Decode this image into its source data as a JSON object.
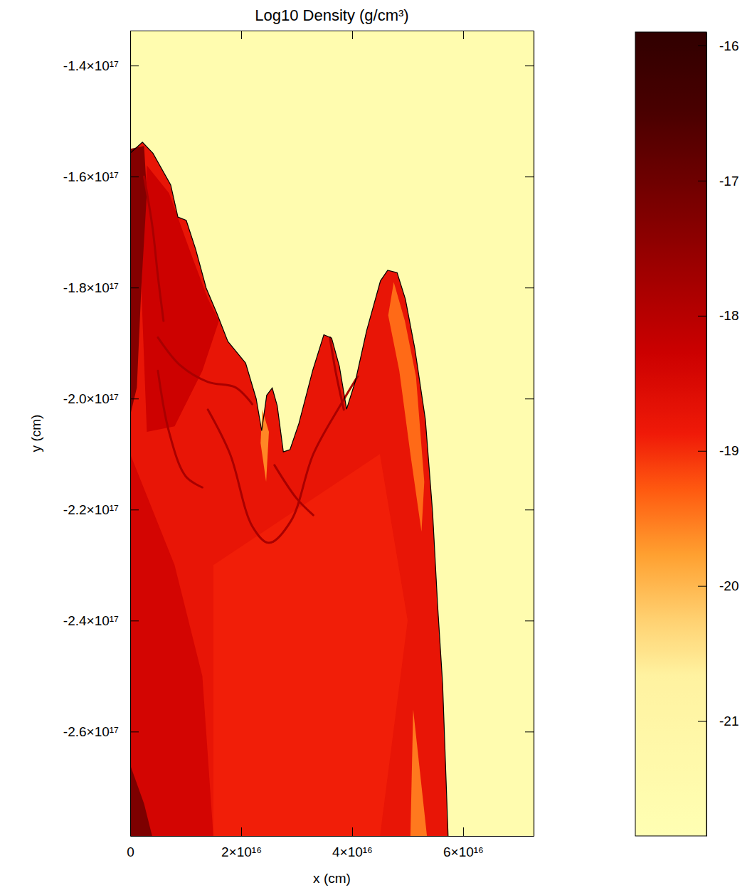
{
  "chart_data": {
    "type": "contour",
    "title": "Log10 Density (g/cm³)",
    "x_label": "x (cm)",
    "y_label": "y (cm)",
    "xlim": [
      0,
      7.27e+16
    ],
    "ylim": [
      -2.788e+17,
      -1.337e+17
    ],
    "xticks": [
      0,
      {
        "value": 2e+16,
        "label": "2×10¹⁶"
      },
      {
        "value": 4e+16,
        "label": "4×10¹⁶"
      },
      {
        "value": 6e+16,
        "label": "6×10¹⁶"
      }
    ],
    "yticks": [
      {
        "value": -1.4e+17,
        "label": "-1.4×10¹⁷"
      },
      {
        "value": -1.6e+17,
        "label": "-1.6×10¹⁷"
      },
      {
        "value": -1.8e+17,
        "label": "-1.8×10¹⁷"
      },
      {
        "value": -2e+17,
        "label": "-2.0×10¹⁷"
      },
      {
        "value": -2.2e+17,
        "label": "-2.2×10¹⁷"
      },
      {
        "value": -2.4e+17,
        "label": "-2.4×10¹⁷"
      },
      {
        "value": -2.6e+17,
        "label": "-2.6×10¹⁷"
      }
    ],
    "background": -21.6,
    "colorbar": {
      "range": [
        -21.85,
        -15.9
      ],
      "ticks": [
        -21,
        -20,
        -19,
        -18,
        -17,
        -16
      ]
    },
    "regions": [
      {
        "value": -18.75,
        "points": [
          [
            0,
            -1.558e+17
          ],
          [
            2200000000000000.0,
            -1.538e+17
          ],
          [
            4100000000000000.0,
            -1.558e+17
          ],
          [
            7300000000000000.0,
            -1.615e+17
          ],
          [
            8600000000000000.0,
            -1.673e+17
          ],
          [
            1.01e+16,
            -1.679e+17
          ],
          [
            1.18e+16,
            -1.731e+17
          ],
          [
            1.37e+16,
            -1.801e+17
          ],
          [
            1.56e+16,
            -1.846e+17
          ],
          [
            1.76e+16,
            -1.897e+17
          ],
          [
            2.08e+16,
            -1.936e+17
          ],
          [
            2.27e+16,
            -2e+17
          ],
          [
            2.37e+16,
            -2.058e+17
          ],
          [
            2.46e+16,
            -1.994e+17
          ],
          [
            2.56e+16,
            -1.981e+17
          ],
          [
            2.65e+16,
            -2.013e+17
          ],
          [
            2.76e+16,
            -2.096e+17
          ],
          [
            2.88e+16,
            -2.092e+17
          ],
          [
            3.04e+16,
            -2.045e+17
          ],
          [
            3.29e+16,
            -1.949e+17
          ],
          [
            3.49e+16,
            -1.885e+17
          ],
          [
            3.63e+16,
            -1.891e+17
          ],
          [
            3.77e+16,
            -1.942e+17
          ],
          [
            3.9e+16,
            -2.019e+17
          ],
          [
            4.06e+16,
            -1.968e+17
          ],
          [
            4.26e+16,
            -1.878e+17
          ],
          [
            4.51e+16,
            -1.788e+17
          ],
          [
            4.64e+16,
            -1.769e+17
          ],
          [
            4.81e+16,
            -1.773e+17
          ],
          [
            4.96e+16,
            -1.821e+17
          ],
          [
            5.13e+16,
            -1.91e+17
          ],
          [
            5.32e+16,
            -2.038e+17
          ],
          [
            5.45e+16,
            -2.205e+17
          ],
          [
            5.54e+16,
            -2.372e+17
          ],
          [
            5.63e+16,
            -2.513e+17
          ],
          [
            5.73e+16,
            -2.79e+17
          ],
          [
            0,
            -2.79e+17
          ]
        ]
      },
      {
        "value": -18.9,
        "points": [
          [
            1.5e+16,
            -2.3e+17
          ],
          [
            4.5e+16,
            -2.1e+17
          ],
          [
            5e+16,
            -2.4e+17
          ],
          [
            4.5e+16,
            -2.79e+17
          ],
          [
            1.5e+16,
            -2.79e+17
          ]
        ]
      },
      {
        "value": -18.3,
        "points": [
          [
            3000000000000000.0,
            -1.58e+17
          ],
          [
            7000000000000000.0,
            -1.63e+17
          ],
          [
            1.1e+16,
            -1.74e+17
          ],
          [
            1.4e+16,
            -1.82e+17
          ],
          [
            1.6e+16,
            -1.86e+17
          ],
          [
            1.3e+16,
            -1.95e+17
          ],
          [
            8000000000000000.0,
            -2.05e+17
          ],
          [
            3000000000000000.0,
            -2.06e+17
          ],
          [
            2000000000000000.0,
            -1.8e+17
          ]
        ]
      },
      {
        "value": -18.4,
        "points": [
          [
            0,
            -2.1e+17
          ],
          [
            8000000000000000.0,
            -2.3e+17
          ],
          [
            1.3e+16,
            -2.5e+17
          ],
          [
            1.5e+16,
            -2.79e+17
          ],
          [
            0,
            -2.79e+17
          ]
        ]
      },
      {
        "value": -17.3,
        "points": [
          [
            0,
            -1.55e+17
          ],
          [
            2500000000000000.0,
            -1.545e+17
          ],
          [
            3000000000000000.0,
            -1.63e+17
          ],
          [
            2000000000000000.0,
            -1.8e+17
          ],
          [
            1200000000000000.0,
            -1.98e+17
          ],
          [
            0,
            -2.03e+17
          ]
        ]
      },
      {
        "value": -17.2,
        "points": [
          [
            0,
            -2.66e+17
          ],
          [
            2500000000000000.0,
            -2.73e+17
          ],
          [
            4000000000000000.0,
            -2.79e+17
          ],
          [
            0,
            -2.79e+17
          ]
        ]
      },
      {
        "value": -19.4,
        "points": [
          [
            4.75e+16,
            -1.79e+17
          ],
          [
            4.95e+16,
            -1.86e+17
          ],
          [
            5.15e+16,
            -1.96e+17
          ],
          [
            5.3e+16,
            -2.15e+17
          ],
          [
            5.25e+16,
            -2.24e+17
          ],
          [
            5.05e+16,
            -2.1e+17
          ],
          [
            4.85e+16,
            -1.95e+17
          ],
          [
            4.65e+16,
            -1.85e+17
          ]
        ]
      },
      {
        "value": -19.5,
        "points": [
          [
            5.1e+16,
            -2.56e+17
          ],
          [
            5.35e+16,
            -2.79e+17
          ],
          [
            5.05e+16,
            -2.79e+17
          ]
        ]
      },
      {
        "value": -19.6,
        "points": [
          [
            2.38e+16,
            -2.02e+17
          ],
          [
            2.5e+16,
            -2.06e+17
          ],
          [
            2.45e+16,
            -2.15e+17
          ],
          [
            2.35e+16,
            -2.08e+17
          ]
        ]
      }
    ],
    "filaments": [
      {
        "value": -17.8,
        "points": [
          [
            5000000000000000.0,
            -1.89e+17
          ],
          [
            9000000000000000.0,
            -1.94e+17
          ],
          [
            1.4e+16,
            -1.97e+17
          ],
          [
            1.9e+16,
            -1.98e+17
          ],
          [
            2.2e+16,
            -2.01e+17
          ]
        ]
      },
      {
        "value": -17.8,
        "points": [
          [
            5000000000000000.0,
            -1.95e+17
          ],
          [
            7000000000000000.0,
            -2.06e+17
          ],
          [
            1e+16,
            -2.14e+17
          ],
          [
            1.3e+16,
            -2.16e+17
          ]
        ]
      },
      {
        "value": -17.8,
        "points": [
          [
            1.4e+16,
            -2.02e+17
          ],
          [
            1.8e+16,
            -2.1e+17
          ],
          [
            2.2e+16,
            -2.23e+17
          ],
          [
            2.5e+16,
            -2.26e+17
          ],
          [
            2.9e+16,
            -2.22e+17
          ],
          [
            3.3e+16,
            -2.1e+17
          ],
          [
            3.8e+16,
            -2.01e+17
          ],
          [
            4.1e+16,
            -1.96e+17
          ]
        ]
      },
      {
        "value": -17.8,
        "points": [
          [
            2.6e+16,
            -2.12e+17
          ],
          [
            3e+16,
            -2.18e+17
          ],
          [
            3.3e+16,
            -2.21e+17
          ]
        ]
      },
      {
        "value": -17.8,
        "points": [
          [
            3.6e+16,
            -1.89e+17
          ],
          [
            3.7e+16,
            -1.95e+17
          ],
          [
            3.85e+16,
            -2.02e+17
          ]
        ]
      },
      {
        "value": -17.8,
        "points": [
          [
            2500000000000000.0,
            -1.6e+17
          ],
          [
            4000000000000000.0,
            -1.69e+17
          ],
          [
            5000000000000000.0,
            -1.78e+17
          ],
          [
            6000000000000000.0,
            -1.86e+17
          ]
        ]
      }
    ]
  }
}
